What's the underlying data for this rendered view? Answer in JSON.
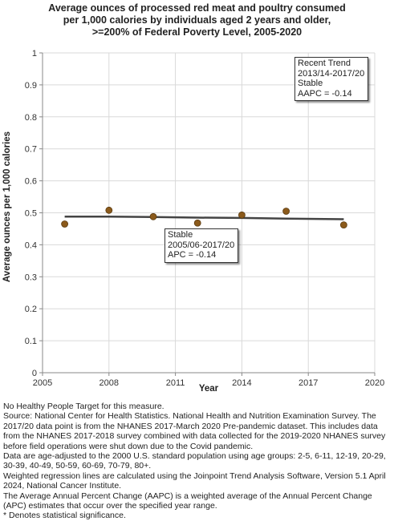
{
  "chart_data": {
    "type": "scatter",
    "title": [
      "Average ounces of processed red meat and poultry consumed",
      "per 1,000 calories by individuals aged 2 years and older,",
      ">=200% of Federal Poverty Level,  2005-2020"
    ],
    "xlabel": "Year",
    "ylabel": "Average ounces per 1,000 calories",
    "xlim": [
      2005,
      2020
    ],
    "ylim": [
      0,
      1
    ],
    "x_ticks": [
      2005,
      2008,
      2011,
      2014,
      2017,
      2020
    ],
    "y_ticks": [
      0,
      0.1,
      0.2,
      0.3,
      0.4,
      0.5,
      0.6,
      0.7,
      0.8,
      0.9,
      1
    ],
    "y_tick_labels": [
      "0",
      "0.1",
      "0.2",
      "0.3",
      "0.4",
      "0.5",
      "0.6",
      "0.7",
      "0.8",
      "0.9",
      "1"
    ],
    "grid": true,
    "points": [
      {
        "x": 2006,
        "y": 0.465
      },
      {
        "x": 2008,
        "y": 0.508
      },
      {
        "x": 2010,
        "y": 0.488
      },
      {
        "x": 2012,
        "y": 0.468
      },
      {
        "x": 2014,
        "y": 0.493
      },
      {
        "x": 2016,
        "y": 0.505
      },
      {
        "x": 2018.6,
        "y": 0.462
      }
    ],
    "trend": [
      {
        "x": 2006,
        "y": 0.488
      },
      {
        "x": 2008,
        "y": 0.488
      },
      {
        "x": 2010,
        "y": 0.487
      },
      {
        "x": 2012,
        "y": 0.485
      },
      {
        "x": 2014,
        "y": 0.484
      },
      {
        "x": 2016,
        "y": 0.482
      },
      {
        "x": 2018.6,
        "y": 0.48
      }
    ],
    "annotations": [
      {
        "lines": [
          "Recent Trend",
          "2013/14-2017/20",
          "Stable",
          "AAPC = -0.14"
        ]
      },
      {
        "lines": [
          "Stable",
          "2005/06-2017/20",
          "APC = -0.14"
        ]
      }
    ],
    "colors": {
      "point": "#8B5A1B",
      "point_edge": "#5a3a10",
      "trend": "#444444",
      "grid": "#d9d9d9",
      "axis": "#888888"
    }
  },
  "notes": [
    "No Healthy People Target for this measure.",
    "Source: National Center for Health Statistics. National Health and Nutrition Examination Survey. The 2017/20 data point is from the NHANES 2017-March 2020 Pre-pandemic dataset. This includes data from the NHANES 2017-2018 survey combined with data collected for the 2019-2020 NHANES survey before field operations were shut down due to the Covid pandemic.",
    "Data are age-adjusted to the 2000 U.S. standard population using age groups: 2-5, 6-11, 12-19, 20-29, 30-39, 40-49, 50-59, 60-69, 70-79, 80+.",
    "Weighted regression lines are calculated using the Joinpoint Trend Analysis Software, Version 5.1 April 2024, National Cancer Institute.",
    "The Average Annual Percent Change (AAPC) is a weighted average of the Annual Percent Change (APC) estimates that occur over the specified year range.",
    "* Denotes statistical significance."
  ]
}
